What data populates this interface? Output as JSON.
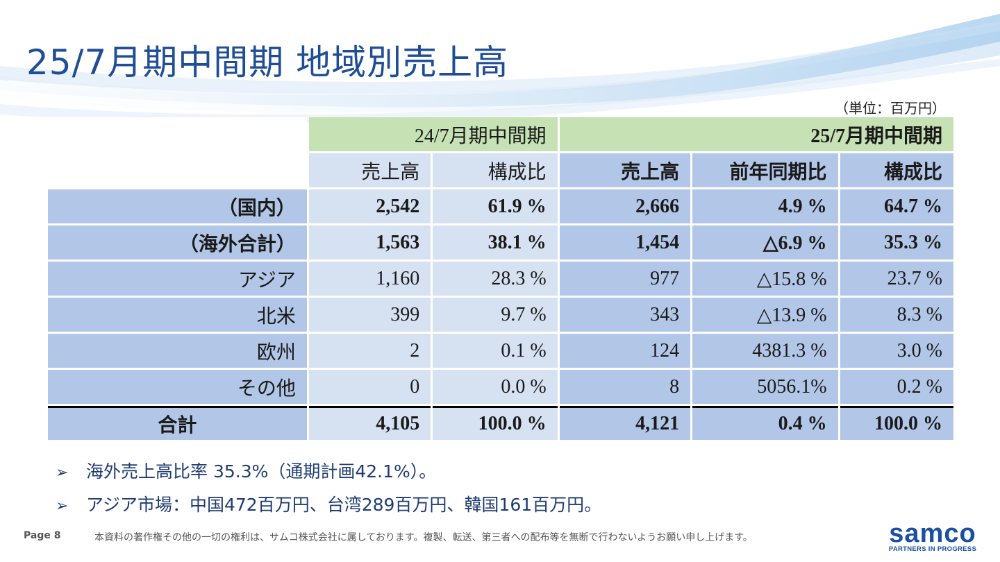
{
  "title": "25/7月期中間期 地域別売上高",
  "unit": "（単位：百万円）",
  "table": {
    "period_prev": "24/7月期中間期",
    "period_curr": "25/7月期中間期",
    "subheaders_prev": [
      "売上高",
      "構成比"
    ],
    "subheaders_curr": [
      "売上高",
      "前年同期比",
      "構成比"
    ],
    "rows": [
      {
        "label": "（国内）",
        "style": "bold",
        "prev_sales": "2,542",
        "prev_ratio": "61.9 %",
        "curr_sales": "2,666",
        "yoy": "4.9 %",
        "curr_ratio": "64.7 %"
      },
      {
        "label": "（海外合計）",
        "style": "bold",
        "prev_sales": "1,563",
        "prev_ratio": "38.1 %",
        "curr_sales": "1,454",
        "yoy": "△6.9 %",
        "curr_ratio": "35.3 %"
      },
      {
        "label": "アジア",
        "style": "indent",
        "prev_sales": "1,160",
        "prev_ratio": "28.3 %",
        "curr_sales": "977",
        "yoy": "△15.8 %",
        "curr_ratio": "23.7 %"
      },
      {
        "label": "北米",
        "style": "indent",
        "prev_sales": "399",
        "prev_ratio": "9.7 %",
        "curr_sales": "343",
        "yoy": "△13.9 %",
        "curr_ratio": "8.3 %"
      },
      {
        "label": "欧州",
        "style": "indent",
        "prev_sales": "2",
        "prev_ratio": "0.1 %",
        "curr_sales": "124",
        "yoy": "4381.3 %",
        "curr_ratio": "3.0 %"
      },
      {
        "label": "その他",
        "style": "indent",
        "prev_sales": "0",
        "prev_ratio": "0.0 %",
        "curr_sales": "8",
        "yoy": "5056.1%",
        "curr_ratio": "0.2 %"
      },
      {
        "label": "合計",
        "style": "total",
        "prev_sales": "4,105",
        "prev_ratio": "100.0 %",
        "curr_sales": "4,121",
        "yoy": "0.4 %",
        "curr_ratio": "100.0 %"
      }
    ]
  },
  "bullets": [
    {
      "marker": "➢",
      "text": "海外売上高比率 35.3%（通期計画42.1%）。"
    },
    {
      "marker": "➢",
      "text": "アジア市場：中国472百万円、台湾289百万円、韓国161百万円。"
    }
  ],
  "footer": {
    "page": "Page 8",
    "copyright": "本資料の著作権その他の一切の権利は、サムコ株式会社に属しております。複製、転送、第三者への配布等を無断で行わないようお願い申し上げます。",
    "logo_text": "samco",
    "logo_tagline": "PARTNERS IN PROGRESS"
  },
  "colors": {
    "title": "#1f4e96",
    "header_green": "#c6e1b4",
    "cell_light_blue": "#d6e1f2",
    "cell_mid_blue": "#b2c6e7",
    "logo_blue": "#1b4fa2"
  }
}
